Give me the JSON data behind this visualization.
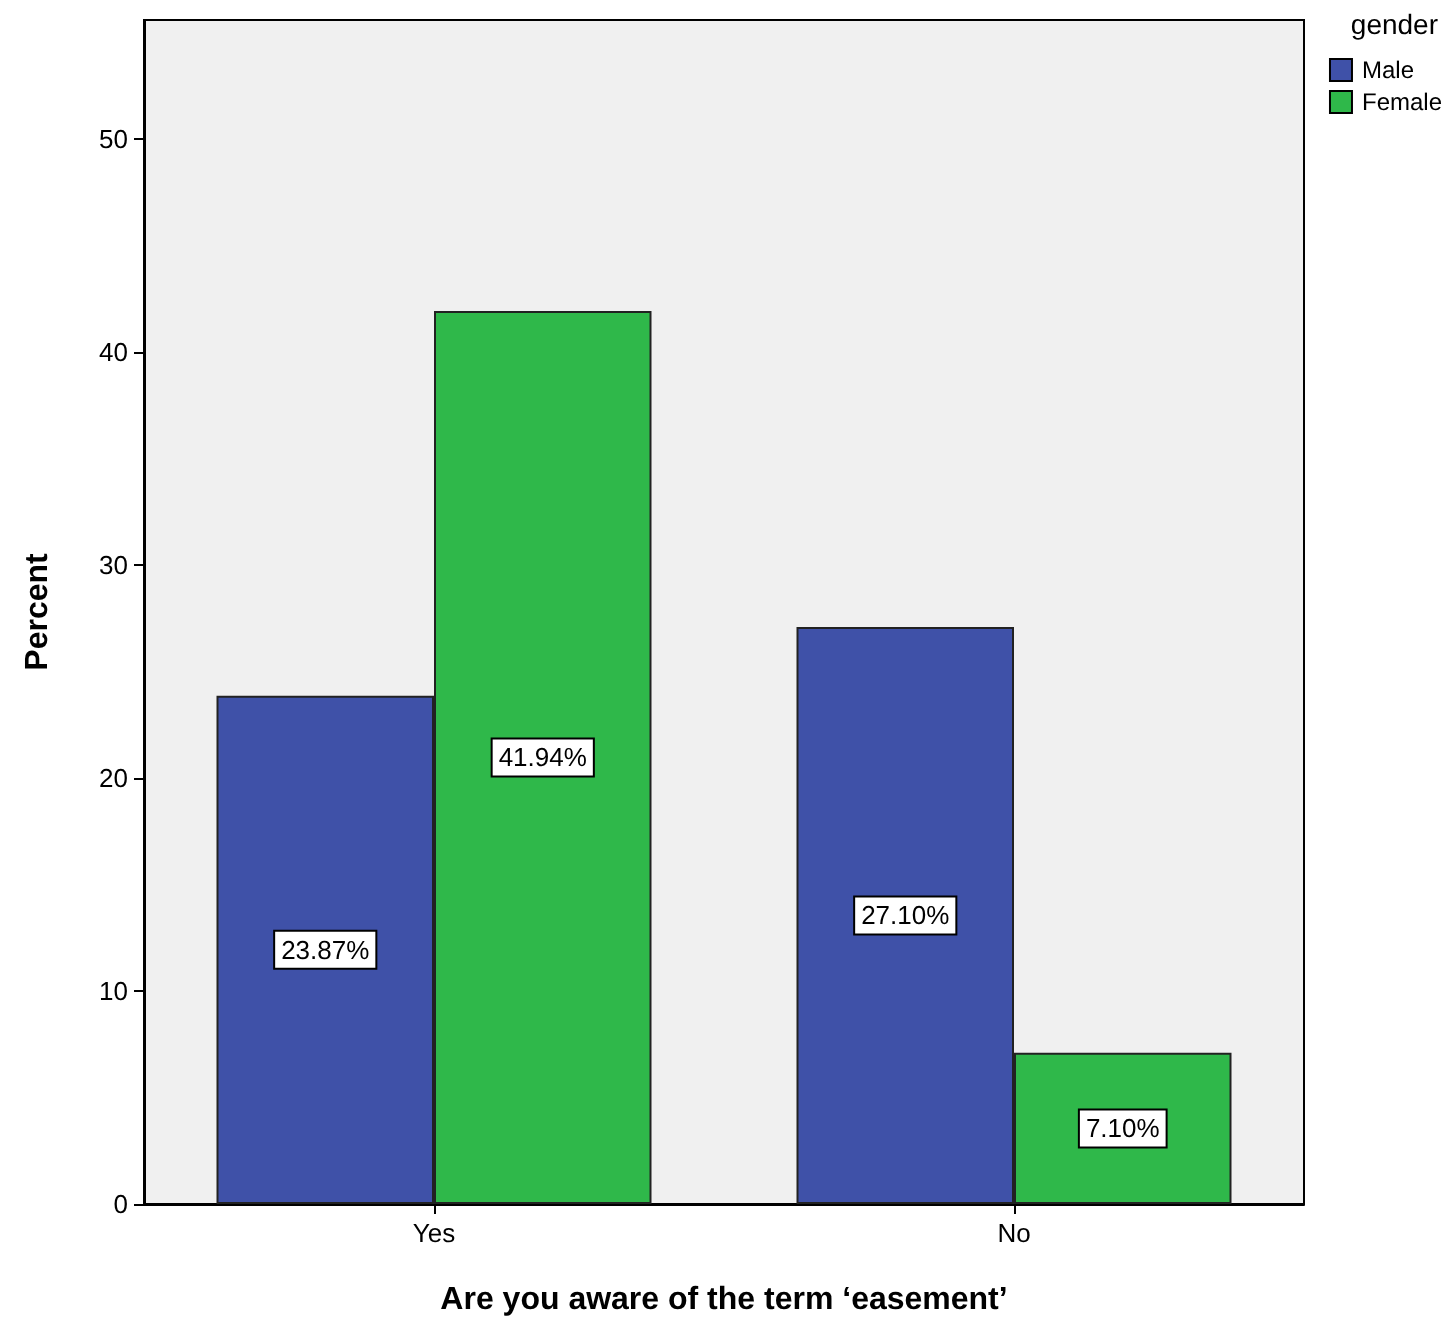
{
  "chart_data": {
    "type": "bar",
    "xlabel": "Are you aware of the term ‘easement’",
    "ylabel": "Percent",
    "legend_title": "gender",
    "categories": [
      "Yes",
      "No"
    ],
    "series": [
      {
        "name": "Male",
        "color": "#3f51a8",
        "values": [
          23.87,
          27.1
        ],
        "value_labels": [
          "23.87%",
          "27.10%"
        ]
      },
      {
        "name": "Female",
        "color": "#2fb84a",
        "values": [
          41.94,
          7.1
        ],
        "value_labels": [
          "41.94%",
          "7.10%"
        ]
      }
    ],
    "ylim": [
      0,
      55.6
    ],
    "yticks": [
      0,
      10,
      20,
      30,
      40,
      50
    ],
    "grid": false,
    "legend": "top right"
  }
}
